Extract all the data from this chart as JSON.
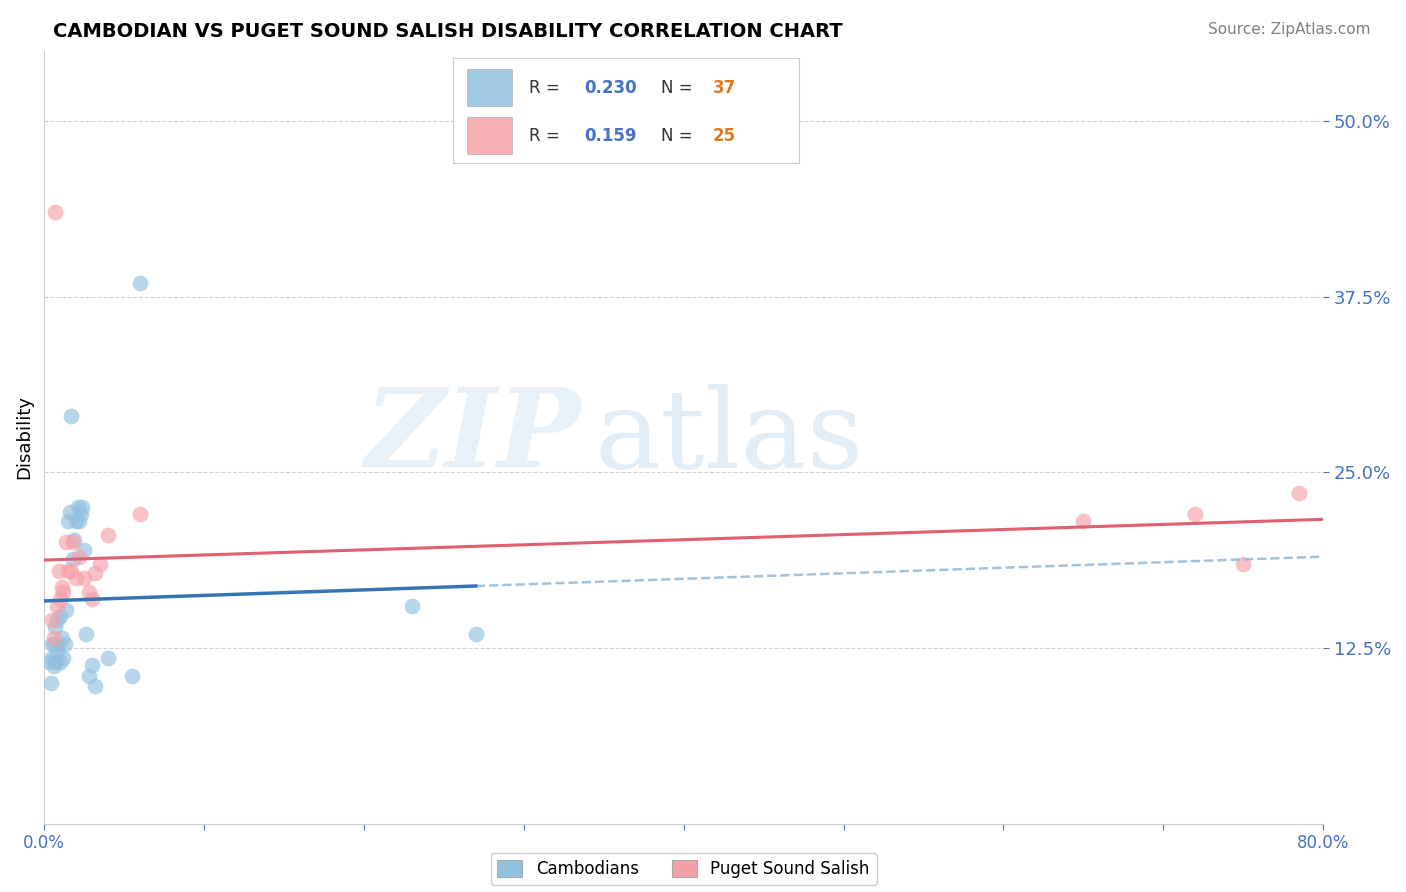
{
  "title": "CAMBODIAN VS PUGET SOUND SALISH DISABILITY CORRELATION CHART",
  "source": "Source: ZipAtlas.com",
  "ylabel": "Disability",
  "xlim": [
    0.0,
    0.8
  ],
  "ylim": [
    0.0,
    0.55
  ],
  "yticks": [
    0.125,
    0.25,
    0.375,
    0.5
  ],
  "ytick_labels": [
    "12.5%",
    "25.0%",
    "37.5%",
    "50.0%"
  ],
  "xticks": [
    0.0,
    0.1,
    0.2,
    0.3,
    0.4,
    0.5,
    0.6,
    0.7,
    0.8
  ],
  "xtick_labels": [
    "0.0%",
    "",
    "",
    "",
    "",
    "",
    "",
    "",
    "80.0%"
  ],
  "R_cambodian": 0.23,
  "N_cambodian": 37,
  "R_salish": 0.159,
  "N_salish": 25,
  "blue_color": "#92c0e0",
  "pink_color": "#f5a0a8",
  "blue_line_solid_color": "#3575b5",
  "blue_line_dash_color": "#90b8d8",
  "pink_line_color": "#e06070",
  "background_color": "#ffffff",
  "legend_R_color": "#4472c4",
  "legend_N_color": "#e07820",
  "legend_text_color": "#333333",
  "cambodian_x": [
    0.003,
    0.004,
    0.005,
    0.005,
    0.006,
    0.006,
    0.007,
    0.007,
    0.008,
    0.008,
    0.009,
    0.01,
    0.01,
    0.011,
    0.012,
    0.013,
    0.014,
    0.015,
    0.016,
    0.017,
    0.018,
    0.019,
    0.02,
    0.021,
    0.022,
    0.023,
    0.024,
    0.025,
    0.026,
    0.028,
    0.03,
    0.032,
    0.04,
    0.055,
    0.06,
    0.23,
    0.27
  ],
  "cambodian_y": [
    0.115,
    0.1,
    0.128,
    0.118,
    0.112,
    0.128,
    0.115,
    0.14,
    0.122,
    0.145,
    0.128,
    0.115,
    0.148,
    0.132,
    0.118,
    0.128,
    0.152,
    0.215,
    0.222,
    0.29,
    0.188,
    0.202,
    0.215,
    0.225,
    0.215,
    0.22,
    0.225,
    0.195,
    0.135,
    0.105,
    0.113,
    0.098,
    0.118,
    0.105,
    0.385,
    0.155,
    0.135
  ],
  "salish_x": [
    0.005,
    0.006,
    0.007,
    0.008,
    0.009,
    0.01,
    0.011,
    0.012,
    0.014,
    0.015,
    0.017,
    0.018,
    0.02,
    0.022,
    0.025,
    0.028,
    0.03,
    0.032,
    0.035,
    0.04,
    0.06,
    0.65,
    0.72,
    0.75,
    0.785
  ],
  "salish_y": [
    0.145,
    0.132,
    0.435,
    0.155,
    0.18,
    0.16,
    0.168,
    0.165,
    0.2,
    0.18,
    0.18,
    0.2,
    0.175,
    0.19,
    0.175,
    0.165,
    0.16,
    0.178,
    0.185,
    0.205,
    0.22,
    0.215,
    0.22,
    0.185,
    0.235
  ]
}
